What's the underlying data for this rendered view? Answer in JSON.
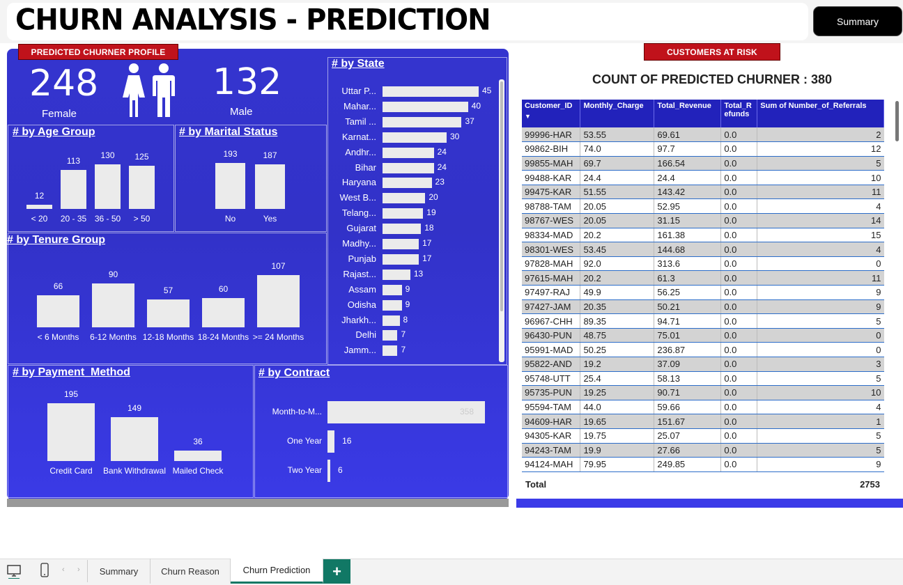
{
  "header": {
    "title": "CHURN ANALYSIS - PREDICTION",
    "summary_button": "Summary"
  },
  "profile": {
    "ribbon": "PREDICTED CHURNER PROFILE",
    "female_count": "248",
    "female_label": "Female",
    "male_count": "132",
    "male_label": "Male"
  },
  "age_group": {
    "title": "# by Age Group",
    "chart_data": {
      "type": "bar",
      "title": "# by Age Group",
      "categories": [
        "< 20",
        "20 - 35",
        "36 - 50",
        "> 50"
      ],
      "values": [
        12,
        113,
        130,
        125
      ]
    }
  },
  "marital": {
    "title": "# by Marital Status",
    "chart_data": {
      "type": "bar",
      "title": "# by Marital Status",
      "categories": [
        "No",
        "Yes"
      ],
      "values": [
        193,
        187
      ]
    }
  },
  "tenure": {
    "title": "# by Tenure Group",
    "chart_data": {
      "type": "bar",
      "title": "# by Tenure Group",
      "categories": [
        "< 6 Months",
        "6-12 Months",
        "12-18 Months",
        "18-24 Months",
        ">= 24 Months"
      ],
      "values": [
        66,
        90,
        57,
        60,
        107
      ]
    }
  },
  "payment": {
    "title": "# by Payment_Method",
    "chart_data": {
      "type": "bar",
      "title": "# by Payment_Method",
      "categories": [
        "Credit Card",
        "Bank Withdrawal",
        "Mailed Check"
      ],
      "values": [
        195,
        149,
        36
      ]
    }
  },
  "state": {
    "title": "# by State",
    "chart_data": {
      "type": "bar",
      "orientation": "horizontal",
      "title": "# by State",
      "categories": [
        "Uttar P...",
        "Mahar...",
        "Tamil ...",
        "Karnat...",
        "Andhr...",
        "Bihar",
        "Haryana",
        "West B...",
        "Telang...",
        "Gujarat",
        "Madhy...",
        "Punjab",
        "Rajast...",
        "Assam",
        "Odisha",
        "Jharkh...",
        "Delhi",
        "Jamm..."
      ],
      "values": [
        45,
        40,
        37,
        30,
        24,
        24,
        23,
        20,
        19,
        18,
        17,
        17,
        13,
        9,
        9,
        8,
        7,
        7
      ]
    }
  },
  "contract": {
    "title": "# by Contract",
    "chart_data": {
      "type": "bar",
      "orientation": "horizontal",
      "title": "# by Contract",
      "categories": [
        "Month-to-M...",
        "One Year",
        "Two Year"
      ],
      "values": [
        358,
        16,
        6
      ]
    }
  },
  "risk": {
    "ribbon": "CUSTOMERS AT RISK",
    "count_title": "COUNT OF PREDICTED CHURNER : 380",
    "columns": [
      "Customer_ID",
      "Monthly_Charge",
      "Total_Revenue",
      "Total_R efunds",
      "Sum of Number_of_Referrals"
    ],
    "rows": [
      [
        "99996-HAR",
        "53.55",
        "69.61",
        "0.0",
        "2"
      ],
      [
        "99862-BIH",
        "74.0",
        "97.7",
        "0.0",
        "12"
      ],
      [
        "99855-MAH",
        "69.7",
        "166.54",
        "0.0",
        "5"
      ],
      [
        "99488-KAR",
        "24.4",
        "24.4",
        "0.0",
        "10"
      ],
      [
        "99475-KAR",
        "51.55",
        "143.42",
        "0.0",
        "11"
      ],
      [
        "98788-TAM",
        "20.05",
        "52.95",
        "0.0",
        "4"
      ],
      [
        "98767-WES",
        "20.05",
        "31.15",
        "0.0",
        "14"
      ],
      [
        "98334-MAD",
        "20.2",
        "161.38",
        "0.0",
        "15"
      ],
      [
        "98301-WES",
        "53.45",
        "144.68",
        "0.0",
        "4"
      ],
      [
        "97828-MAH",
        "92.0",
        "313.6",
        "0.0",
        "0"
      ],
      [
        "97615-MAH",
        "20.2",
        "61.3",
        "0.0",
        "11"
      ],
      [
        "97497-RAJ",
        "49.9",
        "56.25",
        "0.0",
        "9"
      ],
      [
        "97427-JAM",
        "20.35",
        "50.21",
        "0.0",
        "9"
      ],
      [
        "96967-CHH",
        "89.35",
        "94.71",
        "0.0",
        "5"
      ],
      [
        "96430-PUN",
        "48.75",
        "75.01",
        "0.0",
        "0"
      ],
      [
        "95991-MAD",
        "50.25",
        "236.87",
        "0.0",
        "0"
      ],
      [
        "95822-AND",
        "19.2",
        "37.09",
        "0.0",
        "3"
      ],
      [
        "95748-UTT",
        "25.4",
        "58.13",
        "0.0",
        "5"
      ],
      [
        "95735-PUN",
        "19.25",
        "90.71",
        "0.0",
        "10"
      ],
      [
        "95594-TAM",
        "44.0",
        "59.66",
        "0.0",
        "4"
      ],
      [
        "94609-HAR",
        "19.65",
        "151.67",
        "0.0",
        "1"
      ],
      [
        "94305-KAR",
        "19.75",
        "25.07",
        "0.0",
        "5"
      ],
      [
        "94243-TAM",
        "19.9",
        "27.66",
        "0.0",
        "5"
      ],
      [
        "94124-MAH",
        "79.95",
        "249.85",
        "0.0",
        "9"
      ]
    ],
    "total_label": "Total",
    "total_value": "2753"
  },
  "tabs": {
    "summary": "Summary",
    "churn_reason": "Churn Reason",
    "churn_prediction": "Churn Prediction",
    "add": "+"
  },
  "icons": {
    "desktop": "desktop-icon",
    "phone": "phone-icon",
    "person": "person-icon",
    "sort": "sort-desc-icon"
  },
  "colors": {
    "panel_blue": "#3434cf",
    "ribbon_red": "#c0121b",
    "table_header": "#2222bb",
    "tab_accent": "#117865"
  }
}
